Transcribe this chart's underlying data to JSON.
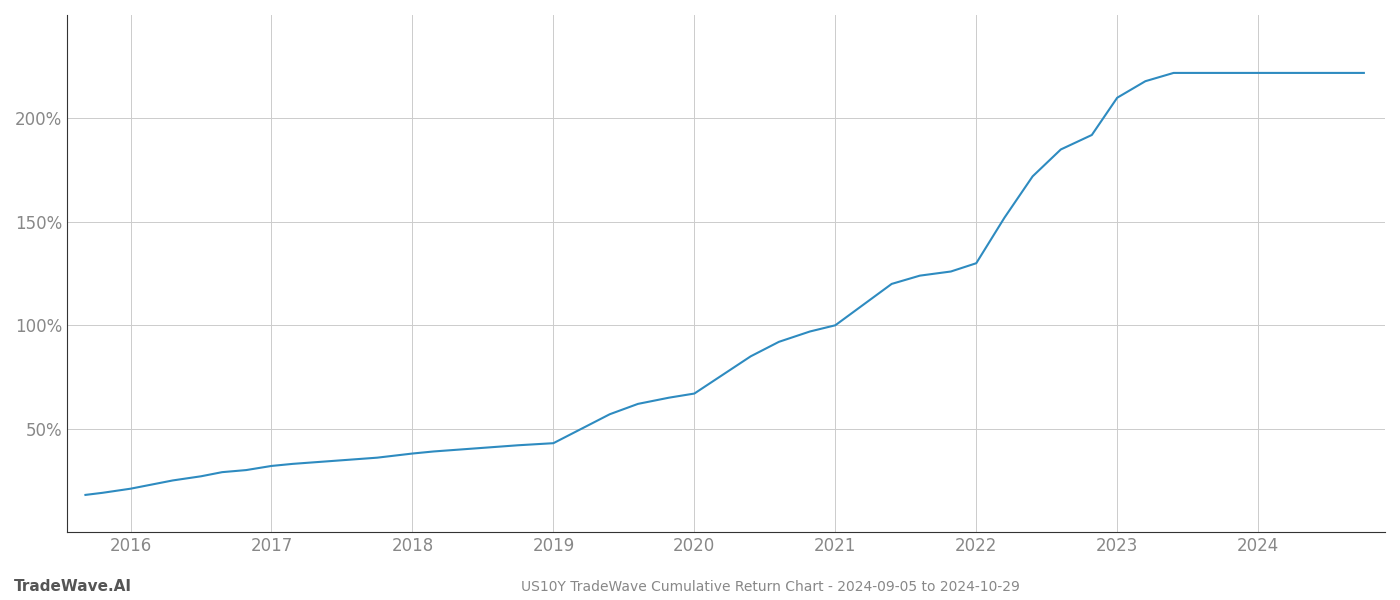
{
  "title": "US10Y TradeWave Cumulative Return Chart - 2024-09-05 to 2024-10-29",
  "watermark": "TradeWave.AI",
  "line_color": "#2e8bc0",
  "background_color": "#ffffff",
  "grid_color": "#cccccc",
  "x_years": [
    2016,
    2017,
    2018,
    2019,
    2020,
    2021,
    2022,
    2023,
    2024
  ],
  "x_data": [
    2015.68,
    2015.8,
    2016.0,
    2016.15,
    2016.3,
    2016.5,
    2016.65,
    2016.82,
    2017.0,
    2017.15,
    2017.35,
    2017.55,
    2017.75,
    2018.0,
    2018.15,
    2018.35,
    2018.55,
    2018.75,
    2019.0,
    2019.2,
    2019.4,
    2019.6,
    2019.82,
    2020.0,
    2020.2,
    2020.4,
    2020.6,
    2020.82,
    2021.0,
    2021.2,
    2021.4,
    2021.6,
    2021.82,
    2022.0,
    2022.2,
    2022.4,
    2022.6,
    2022.82,
    2023.0,
    2023.2,
    2023.4,
    2023.6,
    2023.75,
    2024.0,
    2024.2,
    2024.5,
    2024.75
  ],
  "y_data": [
    18,
    19,
    21,
    23,
    25,
    27,
    29,
    30,
    32,
    33,
    34,
    35,
    36,
    38,
    39,
    40,
    41,
    42,
    43,
    50,
    57,
    62,
    65,
    67,
    76,
    85,
    92,
    97,
    100,
    110,
    120,
    124,
    126,
    130,
    152,
    172,
    185,
    192,
    210,
    218,
    222,
    222,
    222,
    222,
    222,
    222,
    222
  ],
  "yticks": [
    50,
    100,
    150,
    200
  ],
  "ylim": [
    0,
    250
  ],
  "xlim": [
    2015.55,
    2024.9
  ],
  "title_fontsize": 10,
  "watermark_fontsize": 11,
  "tick_fontsize": 12,
  "line_width": 1.5,
  "left_spine_color": "#333333",
  "bottom_spine_color": "#333333"
}
